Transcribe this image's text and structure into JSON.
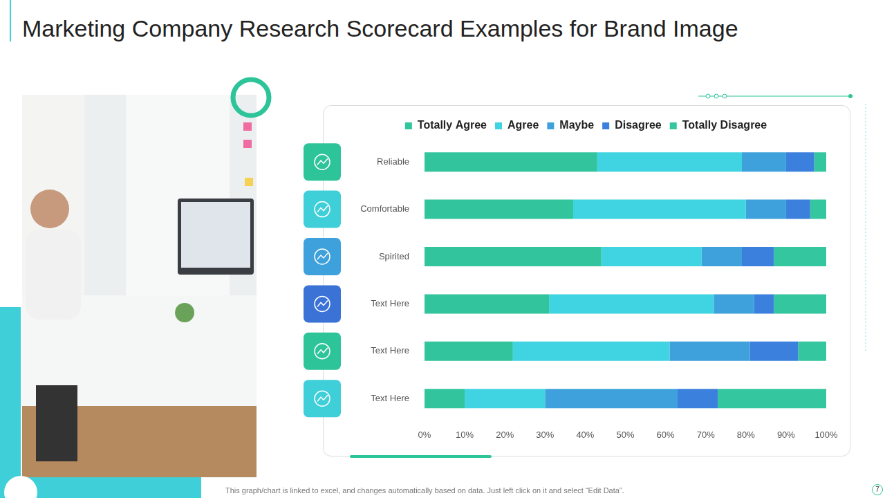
{
  "title": "Marketing Company Research Scorecard Examples for Brand Image",
  "footer": "This graph/chart is linked to excel, and changes automatically based on data. Just left click on it and select “Edit Data”.",
  "page_number": "7",
  "chart_data": {
    "type": "bar",
    "orientation": "horizontal",
    "stacked": true,
    "grid": false,
    "legend": "top",
    "categories": [
      "Reliable",
      "Comfortable",
      "Spirited",
      "Text Here",
      "Text Here",
      "Text Here"
    ],
    "series": [
      {
        "name": "Totally Agree",
        "color": "#32c49c",
        "values": [
          43,
          37,
          44,
          31,
          22,
          10
        ]
      },
      {
        "name": "Agree",
        "color": "#40d3e1",
        "values": [
          36,
          43,
          25,
          41,
          39,
          20
        ]
      },
      {
        "name": "Maybe",
        "color": "#3ea1dc",
        "values": [
          11,
          10,
          10,
          10,
          20,
          33
        ]
      },
      {
        "name": "Disagree",
        "color": "#3b80dc",
        "values": [
          7,
          6,
          8,
          5,
          12,
          10
        ]
      },
      {
        "name": "Totally Disagree",
        "color": "#34c69e",
        "values": [
          3,
          4,
          13,
          13,
          7,
          27
        ]
      }
    ],
    "xlim": [
      0,
      100
    ],
    "xticks": [
      {
        "value": 0,
        "label": "0%"
      },
      {
        "value": 10,
        "label": "10%"
      },
      {
        "value": 20,
        "label": "20%"
      },
      {
        "value": 30,
        "label": "30%"
      },
      {
        "value": 40,
        "label": "40%"
      },
      {
        "value": 50,
        "label": "50%"
      },
      {
        "value": 60,
        "label": "60%"
      },
      {
        "value": 70,
        "label": "70%"
      },
      {
        "value": 80,
        "label": "80%"
      },
      {
        "value": 90,
        "label": "90%"
      },
      {
        "value": 100,
        "label": "100%"
      }
    ]
  }
}
